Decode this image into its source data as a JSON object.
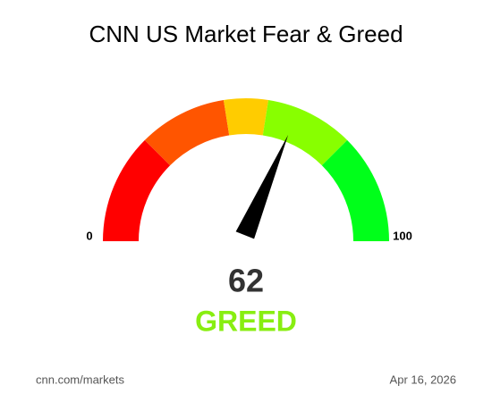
{
  "chart_data": {
    "type": "gauge",
    "title": "CNN US Market Fear & Greed",
    "min": 0,
    "max": 100,
    "value": 62,
    "label": "GREED",
    "label_color": "#88ee11",
    "bands": [
      {
        "from": 0,
        "to": 25,
        "color": "#ff0000"
      },
      {
        "from": 25,
        "to": 45,
        "color": "#ff5500"
      },
      {
        "from": 45,
        "to": 55,
        "color": "#ffcc00"
      },
      {
        "from": 55,
        "to": 75,
        "color": "#88ff00"
      },
      {
        "from": 75,
        "to": 100,
        "color": "#00ff1a"
      }
    ],
    "needle_color": "#000000",
    "source": "cnn.com/markets",
    "date": "Apr 16, 2026"
  }
}
